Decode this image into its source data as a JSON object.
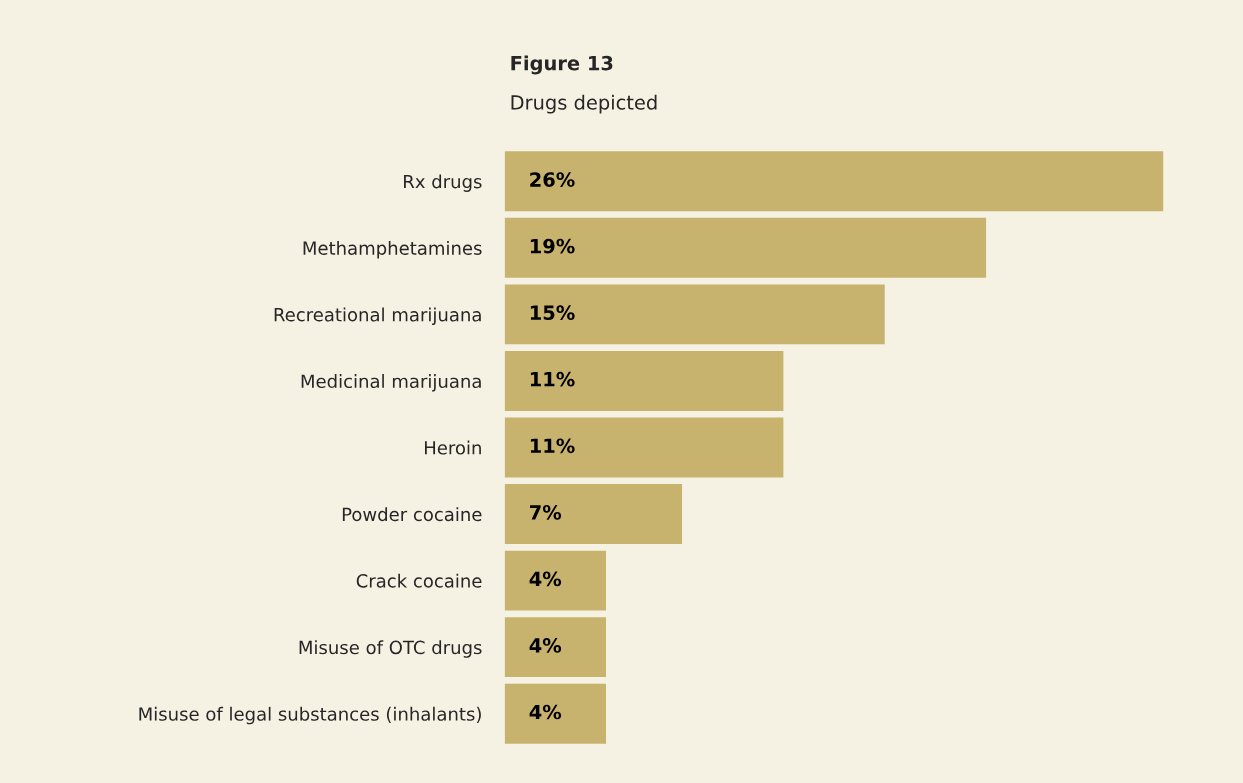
{
  "chart_data": {
    "type": "bar",
    "orientation": "horizontal",
    "title": "Figure 13",
    "subtitle": "Drugs depicted",
    "categories": [
      "Rx drugs",
      "Methamphetamines",
      "Recreational marijuana",
      "Medicinal marijuana",
      "Heroin",
      "Powder cocaine",
      "Crack cocaine",
      "Misuse of OTC drugs",
      "Misuse of legal substances (inhalants)"
    ],
    "values": [
      26,
      19,
      15,
      11,
      11,
      7,
      4,
      4,
      4
    ],
    "value_labels": [
      "26%",
      "19%",
      "15%",
      "11%",
      "11%",
      "7%",
      "4%",
      "4%",
      "4%"
    ],
    "color": "#c8b36e",
    "tick_labels": "y",
    "grid": false,
    "legend": false
  }
}
